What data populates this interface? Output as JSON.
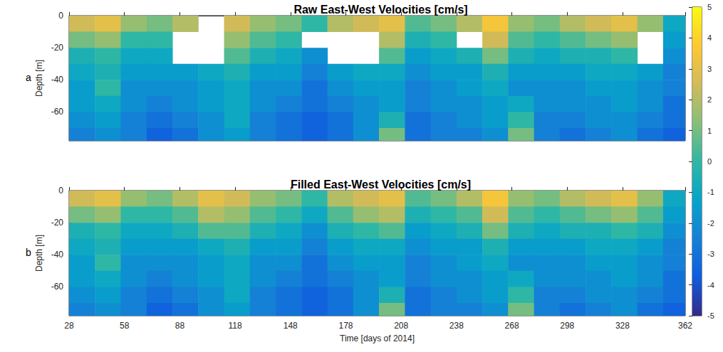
{
  "chart_data": [
    {
      "type": "heatmap",
      "panel": "a",
      "title": "Raw East-West Velocities [cm/s]",
      "ylabel": "Depth [m]",
      "tick_labels": "y",
      "grid": false,
      "xlim": [
        28,
        362
      ],
      "ylim": [
        -78,
        0
      ],
      "xticks": [
        28,
        58,
        88,
        118,
        148,
        178,
        208,
        238,
        268,
        298,
        328,
        362
      ],
      "yticks": [
        -60,
        -40,
        -20,
        0
      ],
      "x_bins": [
        28,
        42,
        56,
        70,
        84,
        98,
        112,
        126,
        140,
        154,
        168,
        182,
        196,
        210,
        224,
        238,
        252,
        266,
        280,
        294,
        308,
        322,
        336,
        350,
        362
      ],
      "y_bins": [
        0,
        -10,
        -20,
        -30,
        -40,
        -50,
        -60,
        -70,
        -78
      ],
      "values": [
        [
          2.5,
          3,
          1.5,
          1,
          2,
          null,
          2.5,
          1.5,
          1,
          0,
          2,
          2.5,
          3,
          0.5,
          1,
          2,
          3.5,
          1.5,
          1,
          2,
          2.5,
          3,
          1.5,
          -1
        ],
        [
          1,
          1.5,
          0,
          0,
          null,
          null,
          1.5,
          0.5,
          0,
          null,
          null,
          null,
          2,
          -0.5,
          0,
          null,
          2.5,
          0.5,
          0,
          0.5,
          1,
          1.5,
          null,
          -1.5
        ],
        [
          -0.5,
          0,
          -1,
          -1,
          null,
          null,
          0.5,
          -0.5,
          -1,
          -2,
          null,
          null,
          0.5,
          -1.5,
          -1,
          -0.5,
          1,
          -0.5,
          -1,
          -0.5,
          -0.5,
          0,
          null,
          -2
        ],
        [
          -1,
          -0.5,
          -1.5,
          -1.5,
          -1.5,
          -1,
          -0.5,
          -1.5,
          -1.5,
          -2.5,
          -1.5,
          -1,
          -1,
          -2,
          -1.5,
          -1.5,
          -0.5,
          -1.5,
          -1.5,
          -1.5,
          -1,
          -1,
          -1.5,
          -2.5
        ],
        [
          -1.5,
          0,
          -2,
          -2,
          -2,
          -1.5,
          -1,
          -2,
          -2,
          -3,
          -2,
          -1.5,
          -1.5,
          -2.5,
          -2,
          -1.5,
          -1,
          -2,
          -2,
          -2,
          -1.5,
          -1.5,
          -2,
          -2.5
        ],
        [
          -1.5,
          -1,
          -2,
          -2.5,
          -2,
          -1.5,
          -1,
          -2,
          -2.5,
          -3,
          -2.5,
          -2,
          -1.5,
          -2.5,
          -2,
          -2,
          -1.5,
          -1,
          -2,
          -2,
          -2,
          -1.5,
          -2,
          -3
        ],
        [
          -2,
          -1.5,
          -2.5,
          -3,
          -2.5,
          -2,
          -1,
          -2.5,
          -3,
          -3.5,
          -3,
          -2,
          -0.5,
          -3,
          -2.5,
          -2,
          -1.5,
          0,
          -2.5,
          -2.5,
          -2,
          -2,
          -2.5,
          -3
        ],
        [
          -2.5,
          -2,
          -2.5,
          -3.5,
          -3,
          -2,
          -1.5,
          -2.5,
          -3,
          -3.5,
          -3,
          -2,
          1,
          -3,
          -2.5,
          -2.5,
          -2,
          1,
          -2.5,
          -3,
          -2.5,
          -2,
          -3,
          -3.5
        ]
      ],
      "colorbar": {
        "range": [
          -5,
          5
        ],
        "ticks": [
          -5,
          -4,
          -3,
          -2,
          -1,
          0,
          1,
          2,
          3,
          4,
          5
        ]
      }
    },
    {
      "type": "heatmap",
      "panel": "b",
      "title": "Filled East-West Velocities [cm/s]",
      "xlabel": "Time [days of 2014]",
      "ylabel": "Depth [m]",
      "grid": false,
      "xlim": [
        28,
        362
      ],
      "ylim": [
        -78,
        0
      ],
      "xticks": [
        28,
        58,
        88,
        118,
        148,
        178,
        208,
        238,
        268,
        298,
        328,
        362
      ],
      "yticks": [
        -60,
        -40,
        -20,
        0
      ],
      "x_bins": [
        28,
        42,
        56,
        70,
        84,
        98,
        112,
        126,
        140,
        154,
        168,
        182,
        196,
        210,
        224,
        238,
        252,
        266,
        280,
        294,
        308,
        322,
        336,
        350,
        362
      ],
      "y_bins": [
        0,
        -10,
        -20,
        -30,
        -40,
        -50,
        -60,
        -70,
        -78
      ],
      "values": [
        [
          2.5,
          3,
          1.5,
          1,
          2,
          3,
          2.5,
          1.5,
          1,
          0,
          2,
          2.5,
          3,
          0.5,
          1,
          2,
          3.5,
          1.5,
          1,
          2,
          2.5,
          3,
          1.5,
          -1
        ],
        [
          1,
          1.5,
          0,
          0,
          0.5,
          2,
          1.5,
          0.5,
          0,
          -1,
          0.5,
          1.5,
          2,
          -0.5,
          0,
          0.5,
          2.5,
          0.5,
          0,
          0.5,
          1,
          1.5,
          0.5,
          -1.5
        ],
        [
          -0.5,
          0,
          -1,
          -1,
          -0.5,
          0.5,
          0.5,
          -0.5,
          -1,
          -2,
          -0.5,
          0,
          0.5,
          -1.5,
          -1,
          -0.5,
          1,
          -0.5,
          -1,
          -0.5,
          -0.5,
          0,
          -0.5,
          -2
        ],
        [
          -1,
          -0.5,
          -1.5,
          -1.5,
          -1.5,
          -1,
          -0.5,
          -1.5,
          -1.5,
          -2.5,
          -1.5,
          -1,
          -1,
          -2,
          -1.5,
          -1.5,
          -0.5,
          -1.5,
          -1.5,
          -1.5,
          -1,
          -1,
          -1.5,
          -2.5
        ],
        [
          -1.5,
          0,
          -2,
          -2,
          -2,
          -1.5,
          -1,
          -2,
          -2,
          -3,
          -2,
          -1.5,
          -1.5,
          -2.5,
          -2,
          -1.5,
          -1,
          -2,
          -2,
          -2,
          -1.5,
          -1.5,
          -2,
          -2.5
        ],
        [
          -1.5,
          -1,
          -2,
          -2.5,
          -2,
          -1.5,
          -1,
          -2,
          -2.5,
          -3,
          -2.5,
          -2,
          -1.5,
          -2.5,
          -2,
          -2,
          -1.5,
          -1,
          -2,
          -2,
          -2,
          -1.5,
          -2,
          -3
        ],
        [
          -2,
          -1.5,
          -2.5,
          -3,
          -2.5,
          -2,
          -1,
          -2.5,
          -3,
          -3.5,
          -3,
          -2,
          -0.5,
          -3,
          -2.5,
          -2,
          -1.5,
          0,
          -2.5,
          -2.5,
          -2,
          -2,
          -2.5,
          -3
        ],
        [
          -2.5,
          -2,
          -2.5,
          -3.5,
          -3,
          -2,
          -1.5,
          -2.5,
          -3,
          -3.5,
          -3,
          -2,
          1,
          -3,
          -2.5,
          -2.5,
          -2,
          1,
          -2.5,
          -3,
          -2.5,
          -2,
          -3,
          -3.5
        ]
      ],
      "colorbar": {
        "range": [
          -5,
          5
        ],
        "ticks": [
          -5,
          -4,
          -3,
          -2,
          -1,
          0,
          1,
          2,
          3,
          4,
          5
        ]
      }
    }
  ]
}
